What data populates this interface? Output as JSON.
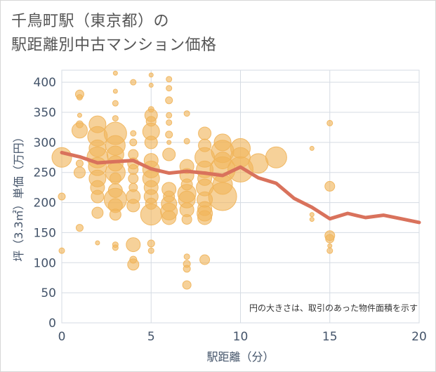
{
  "title": {
    "line1": "千鳥町駅（東京都）の",
    "line2": "駅距離別中古マンション価格"
  },
  "colors": {
    "bubble": "#f0b45a",
    "line": "#d9725c",
    "grid": "#d5dbe3",
    "axis_text": "#44546a",
    "background": "#ffffff"
  },
  "chart_data": {
    "type": "scatter",
    "xlabel": "駅距離（分）",
    "ylabel": "坪（3.3㎡）単価（万円）",
    "xlim": [
      0,
      20
    ],
    "ylim": [
      0,
      420
    ],
    "xticks": [
      0,
      5,
      10,
      15,
      20
    ],
    "yticks": [
      0,
      50,
      100,
      150,
      200,
      250,
      300,
      350,
      400
    ],
    "grid": true,
    "annotation": "円の大きさは、取引のあった物件面積を示す",
    "bubbles": [
      {
        "x": 0,
        "y": 275,
        "r": 14
      },
      {
        "x": 0,
        "y": 210,
        "r": 5
      },
      {
        "x": 0,
        "y": 120,
        "r": 4
      },
      {
        "x": 1,
        "y": 380,
        "r": 6
      },
      {
        "x": 1,
        "y": 375,
        "r": 4
      },
      {
        "x": 1,
        "y": 345,
        "r": 3
      },
      {
        "x": 1,
        "y": 330,
        "r": 5
      },
      {
        "x": 1,
        "y": 320,
        "r": 11
      },
      {
        "x": 1,
        "y": 265,
        "r": 5
      },
      {
        "x": 1,
        "y": 250,
        "r": 8
      },
      {
        "x": 1,
        "y": 158,
        "r": 5
      },
      {
        "x": 2,
        "y": 330,
        "r": 12
      },
      {
        "x": 2,
        "y": 310,
        "r": 14
      },
      {
        "x": 2,
        "y": 290,
        "r": 12
      },
      {
        "x": 2,
        "y": 275,
        "r": 15
      },
      {
        "x": 2,
        "y": 260,
        "r": 13
      },
      {
        "x": 2,
        "y": 240,
        "r": 12
      },
      {
        "x": 2,
        "y": 225,
        "r": 10
      },
      {
        "x": 2,
        "y": 210,
        "r": 9
      },
      {
        "x": 2,
        "y": 183,
        "r": 8
      },
      {
        "x": 2,
        "y": 133,
        "r": 3
      },
      {
        "x": 3,
        "y": 415,
        "r": 3
      },
      {
        "x": 3,
        "y": 385,
        "r": 3
      },
      {
        "x": 3,
        "y": 365,
        "r": 4
      },
      {
        "x": 3,
        "y": 340,
        "r": 4
      },
      {
        "x": 3,
        "y": 315,
        "r": 16
      },
      {
        "x": 3,
        "y": 295,
        "r": 14
      },
      {
        "x": 3,
        "y": 280,
        "r": 12
      },
      {
        "x": 3,
        "y": 265,
        "r": 11
      },
      {
        "x": 3,
        "y": 250,
        "r": 14
      },
      {
        "x": 3,
        "y": 240,
        "r": 8
      },
      {
        "x": 3,
        "y": 220,
        "r": 10
      },
      {
        "x": 3,
        "y": 205,
        "r": 16
      },
      {
        "x": 3,
        "y": 195,
        "r": 10
      },
      {
        "x": 3,
        "y": 180,
        "r": 8
      },
      {
        "x": 3,
        "y": 130,
        "r": 4
      },
      {
        "x": 3,
        "y": 125,
        "r": 4
      },
      {
        "x": 4,
        "y": 400,
        "r": 4
      },
      {
        "x": 4,
        "y": 315,
        "r": 4
      },
      {
        "x": 4,
        "y": 300,
        "r": 5
      },
      {
        "x": 4,
        "y": 280,
        "r": 7
      },
      {
        "x": 4,
        "y": 265,
        "r": 8
      },
      {
        "x": 4,
        "y": 255,
        "r": 7
      },
      {
        "x": 4,
        "y": 240,
        "r": 7
      },
      {
        "x": 4,
        "y": 225,
        "r": 6
      },
      {
        "x": 4,
        "y": 210,
        "r": 10
      },
      {
        "x": 4,
        "y": 195,
        "r": 9
      },
      {
        "x": 4,
        "y": 130,
        "r": 10
      },
      {
        "x": 4,
        "y": 105,
        "r": 5
      },
      {
        "x": 4,
        "y": 97,
        "r": 8
      },
      {
        "x": 5,
        "y": 412,
        "r": 3
      },
      {
        "x": 5,
        "y": 395,
        "r": 3
      },
      {
        "x": 5,
        "y": 355,
        "r": 4
      },
      {
        "x": 5,
        "y": 345,
        "r": 9
      },
      {
        "x": 5,
        "y": 335,
        "r": 7
      },
      {
        "x": 5,
        "y": 318,
        "r": 12
      },
      {
        "x": 5,
        "y": 300,
        "r": 9
      },
      {
        "x": 5,
        "y": 270,
        "r": 10
      },
      {
        "x": 5,
        "y": 255,
        "r": 12
      },
      {
        "x": 5,
        "y": 240,
        "r": 12
      },
      {
        "x": 5,
        "y": 225,
        "r": 10
      },
      {
        "x": 5,
        "y": 210,
        "r": 10
      },
      {
        "x": 5,
        "y": 198,
        "r": 8
      },
      {
        "x": 5,
        "y": 180,
        "r": 15
      },
      {
        "x": 5,
        "y": 132,
        "r": 5
      },
      {
        "x": 5,
        "y": 120,
        "r": 4
      },
      {
        "x": 6,
        "y": 405,
        "r": 4
      },
      {
        "x": 6,
        "y": 390,
        "r": 4
      },
      {
        "x": 6,
        "y": 370,
        "r": 5
      },
      {
        "x": 6,
        "y": 345,
        "r": 4
      },
      {
        "x": 6,
        "y": 333,
        "r": 4
      },
      {
        "x": 6,
        "y": 313,
        "r": 5
      },
      {
        "x": 6,
        "y": 300,
        "r": 3
      },
      {
        "x": 6,
        "y": 280,
        "r": 9
      },
      {
        "x": 6,
        "y": 222,
        "r": 10
      },
      {
        "x": 6,
        "y": 210,
        "r": 8
      },
      {
        "x": 6,
        "y": 198,
        "r": 11
      },
      {
        "x": 6,
        "y": 185,
        "r": 12
      },
      {
        "x": 6,
        "y": 175,
        "r": 10
      },
      {
        "x": 7,
        "y": 348,
        "r": 4
      },
      {
        "x": 7,
        "y": 302,
        "r": 4
      },
      {
        "x": 7,
        "y": 260,
        "r": 10
      },
      {
        "x": 7,
        "y": 245,
        "r": 10
      },
      {
        "x": 7,
        "y": 230,
        "r": 8
      },
      {
        "x": 7,
        "y": 215,
        "r": 13
      },
      {
        "x": 7,
        "y": 205,
        "r": 12
      },
      {
        "x": 7,
        "y": 188,
        "r": 10
      },
      {
        "x": 7,
        "y": 172,
        "r": 7
      },
      {
        "x": 7,
        "y": 110,
        "r": 4
      },
      {
        "x": 7,
        "y": 98,
        "r": 5
      },
      {
        "x": 7,
        "y": 90,
        "r": 5
      },
      {
        "x": 7,
        "y": 63,
        "r": 6
      },
      {
        "x": 8,
        "y": 315,
        "r": 9
      },
      {
        "x": 8,
        "y": 295,
        "r": 9
      },
      {
        "x": 8,
        "y": 275,
        "r": 14
      },
      {
        "x": 8,
        "y": 255,
        "r": 12
      },
      {
        "x": 8,
        "y": 240,
        "r": 10
      },
      {
        "x": 8,
        "y": 225,
        "r": 12
      },
      {
        "x": 8,
        "y": 205,
        "r": 11
      },
      {
        "x": 8,
        "y": 190,
        "r": 10
      },
      {
        "x": 8,
        "y": 182,
        "r": 11
      },
      {
        "x": 8,
        "y": 175,
        "r": 10
      },
      {
        "x": 8,
        "y": 105,
        "r": 7
      },
      {
        "x": 9,
        "y": 300,
        "r": 12
      },
      {
        "x": 9,
        "y": 285,
        "r": 16
      },
      {
        "x": 9,
        "y": 270,
        "r": 12
      },
      {
        "x": 9,
        "y": 255,
        "r": 18
      },
      {
        "x": 9,
        "y": 230,
        "r": 14
      },
      {
        "x": 9,
        "y": 210,
        "r": 20
      },
      {
        "x": 10,
        "y": 290,
        "r": 14
      },
      {
        "x": 10,
        "y": 275,
        "r": 14
      },
      {
        "x": 10,
        "y": 255,
        "r": 18
      },
      {
        "x": 11,
        "y": 265,
        "r": 14
      },
      {
        "x": 12,
        "y": 275,
        "r": 15
      },
      {
        "x": 14,
        "y": 290,
        "r": 3
      },
      {
        "x": 14,
        "y": 180,
        "r": 3
      },
      {
        "x": 14,
        "y": 172,
        "r": 3
      },
      {
        "x": 15,
        "y": 332,
        "r": 4
      },
      {
        "x": 15,
        "y": 227,
        "r": 7
      },
      {
        "x": 15,
        "y": 145,
        "r": 7
      },
      {
        "x": 15,
        "y": 140,
        "r": 6
      },
      {
        "x": 15,
        "y": 128,
        "r": 3
      },
      {
        "x": 15,
        "y": 120,
        "r": 4
      }
    ],
    "trend_line": {
      "x": [
        0,
        1,
        2,
        3,
        4,
        5,
        6,
        7,
        8,
        9,
        10,
        11,
        12,
        13,
        14,
        15,
        16,
        17,
        18,
        19,
        20
      ],
      "y": [
        283,
        276,
        266,
        268,
        270,
        256,
        249,
        252,
        249,
        245,
        259,
        241,
        232,
        207,
        192,
        173,
        182,
        175,
        179,
        173,
        167
      ]
    }
  }
}
